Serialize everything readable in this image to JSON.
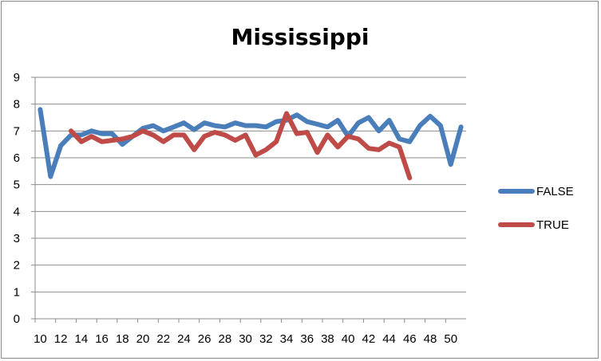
{
  "chart_data": {
    "type": "line",
    "title": "Mississippi",
    "xlabel": "",
    "ylabel": "",
    "x": [
      10,
      11,
      12,
      13,
      14,
      15,
      16,
      17,
      18,
      19,
      20,
      21,
      22,
      23,
      24,
      25,
      26,
      27,
      28,
      29,
      30,
      31,
      32,
      33,
      34,
      35,
      36,
      37,
      38,
      39,
      40,
      41,
      42,
      43,
      44,
      45,
      46,
      47,
      48,
      49,
      50,
      51
    ],
    "x_tick_labels": [
      "10",
      "12",
      "14",
      "16",
      "18",
      "20",
      "22",
      "24",
      "26",
      "28",
      "30",
      "32",
      "34",
      "36",
      "38",
      "40",
      "42",
      "44",
      "46",
      "48",
      "50"
    ],
    "y_tick_labels": [
      "0",
      "1",
      "2",
      "3",
      "4",
      "5",
      "6",
      "7",
      "8",
      "9"
    ],
    "ylim": [
      0,
      9
    ],
    "grid": true,
    "legend_position": "right",
    "series": [
      {
        "name": "FALSE",
        "color": "#4a7ebb",
        "values": [
          7.8,
          5.3,
          6.45,
          6.85,
          6.85,
          7.0,
          6.9,
          6.9,
          6.5,
          6.8,
          7.1,
          7.2,
          7.0,
          7.15,
          7.3,
          7.05,
          7.3,
          7.2,
          7.15,
          7.3,
          7.2,
          7.2,
          7.15,
          7.35,
          7.4,
          7.6,
          7.35,
          7.25,
          7.15,
          7.4,
          6.8,
          7.3,
          7.5,
          7.0,
          7.4,
          6.7,
          6.6,
          7.2,
          7.55,
          7.2,
          5.75,
          7.15
        ]
      },
      {
        "name": "TRUE",
        "color": "#be4b48",
        "values": [
          null,
          null,
          null,
          7.0,
          6.6,
          6.8,
          6.6,
          6.65,
          6.7,
          6.8,
          7.0,
          6.85,
          6.6,
          6.85,
          6.85,
          6.3,
          6.8,
          6.95,
          6.85,
          6.65,
          6.85,
          6.1,
          6.3,
          6.6,
          7.65,
          6.9,
          6.95,
          6.2,
          6.85,
          6.4,
          6.8,
          6.7,
          6.35,
          6.3,
          6.55,
          6.4,
          5.25,
          null,
          null,
          null,
          null,
          null
        ]
      }
    ]
  }
}
